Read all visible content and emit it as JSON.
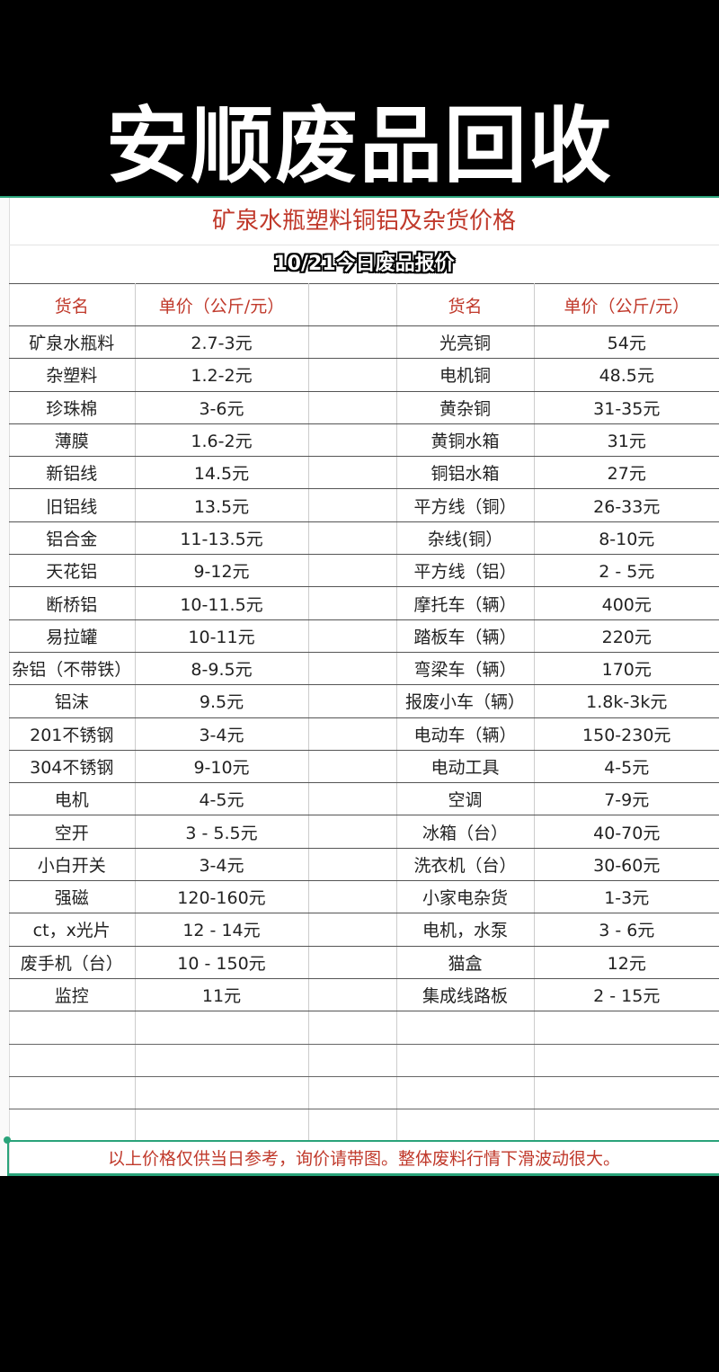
{
  "banner_title": "安顺废品回收",
  "sheet_title": "矿泉水瓶塑料铜铝及杂货价格",
  "date_title": "10/21今日废品报价",
  "headers": {
    "name": "货名",
    "price": "单价（公斤/元）"
  },
  "left": [
    [
      "矿泉水瓶料",
      "2.7-3元"
    ],
    [
      "杂塑料",
      "1.2-2元"
    ],
    [
      "珍珠棉",
      "3-6元"
    ],
    [
      "薄膜",
      "1.6-2元"
    ],
    [
      "新铝线",
      "14.5元"
    ],
    [
      "旧铝线",
      "13.5元"
    ],
    [
      "铝合金",
      "11-13.5元"
    ],
    [
      "天花铝",
      "9-12元"
    ],
    [
      "断桥铝",
      "10-11.5元"
    ],
    [
      "易拉罐",
      "10-11元"
    ],
    [
      "杂铝（不带铁）",
      "8-9.5元"
    ],
    [
      "铝沫",
      "9.5元"
    ],
    [
      "201不锈钢",
      "3-4元"
    ],
    [
      "304不锈钢",
      "9-10元"
    ],
    [
      "电机",
      "4-5元"
    ],
    [
      "空开",
      "3 - 5.5元"
    ],
    [
      "小白开关",
      "3-4元"
    ],
    [
      "强磁",
      "120-160元"
    ],
    [
      "ct，x光片",
      "12 - 14元"
    ],
    [
      "废手机（台）",
      "10 - 150元"
    ],
    [
      "监控",
      "11元"
    ]
  ],
  "right": [
    [
      "光亮铜",
      "54元"
    ],
    [
      "电机铜",
      "48.5元"
    ],
    [
      "黄杂铜",
      "31-35元"
    ],
    [
      "黄铜水箱",
      "31元"
    ],
    [
      "铜铝水箱",
      "27元"
    ],
    [
      "平方线（铜）",
      "26-33元"
    ],
    [
      "杂线(铜）",
      "8-10元"
    ],
    [
      "平方线（铝）",
      "2 - 5元"
    ],
    [
      "摩托车（辆）",
      "400元"
    ],
    [
      "踏板车（辆）",
      "220元"
    ],
    [
      "弯梁车（辆）",
      "170元"
    ],
    [
      "报废小车（辆）",
      "1.8k-3k元"
    ],
    [
      "电动车（辆）",
      "150-230元"
    ],
    [
      "电动工具",
      "4-5元"
    ],
    [
      "空调",
      "7-9元"
    ],
    [
      "冰箱（台）",
      "40-70元"
    ],
    [
      "洗衣机（台）",
      "30-60元"
    ],
    [
      "小家电杂货",
      "1-3元"
    ],
    [
      "电机，水泵",
      "3 - 6元"
    ],
    [
      "猫盒",
      "12元"
    ],
    [
      "集成线路板",
      "2 - 15元"
    ]
  ],
  "note": "以上价格仅供当日参考，询价请带图。整体废料行情下滑波动很大。",
  "colors": {
    "accent_red": "#c0392b",
    "accent_green": "#2aa37a"
  }
}
